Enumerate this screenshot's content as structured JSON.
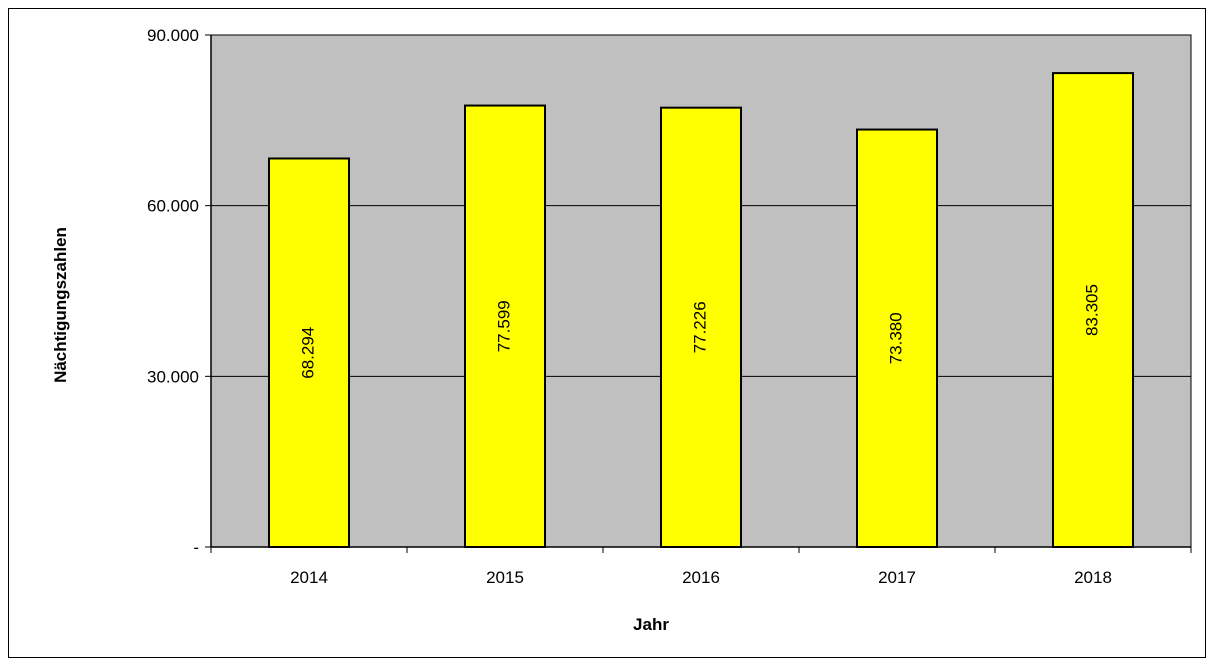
{
  "chart_data": {
    "type": "bar",
    "title": "",
    "xlabel": "Jahr",
    "ylabel": "Nächtigungszahlen",
    "categories": [
      "2014",
      "2015",
      "2016",
      "2017",
      "2018"
    ],
    "values": [
      68294,
      77599,
      77226,
      73380,
      83305
    ],
    "data_labels": [
      "68.294",
      "77.599",
      "77.226",
      "73.380",
      "83.305"
    ],
    "ylim": [
      0,
      90000
    ],
    "yticks": [
      0,
      30000,
      60000,
      90000
    ],
    "ytick_labels": [
      "-",
      "30.000",
      "60.000",
      "90.000"
    ],
    "grid": true,
    "legend": "none",
    "colors": {
      "bar": "#ffff00",
      "plot_background": "#c0c0c0",
      "gridline": "#000000"
    }
  }
}
